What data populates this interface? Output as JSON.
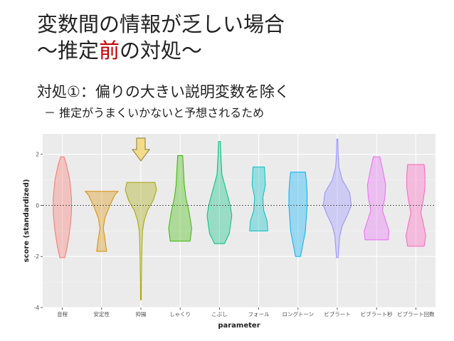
{
  "slide": {
    "title_line1": "変数間の情報が乏しい場合",
    "title_line2_pre": "～推定",
    "title_line2_accent": "前",
    "title_line2_post": "の対処～",
    "bullet": "対処①：偏りの大きい説明変数を除く",
    "sub_bullet": "－ 推定がうまくいかないと予想されるため",
    "accent_color": "#c00000"
  },
  "chart_data": {
    "type": "violin",
    "xlabel": "parameter",
    "ylabel": "score (standardized)",
    "ylim": [
      -4,
      2.8
    ],
    "yticks": [
      2,
      0,
      -2,
      -4
    ],
    "reference_line": 0,
    "grid": true,
    "highlight": {
      "category": "抑揚",
      "marker": "down-arrow",
      "color": "#f2dc8a"
    },
    "categories": [
      "音程",
      "安定性",
      "抑揚",
      "しゃくり",
      "こぶし",
      "フォール",
      "ロングトーン",
      "ビブラート",
      "ビブラート秒",
      "ビブラート回数"
    ],
    "series": [
      {
        "color": "#f8766d",
        "profile": [
          [
            -2.05,
            0.15
          ],
          [
            -1.6,
            0.3
          ],
          [
            -1.0,
            0.45
          ],
          [
            -0.3,
            0.55
          ],
          [
            0.3,
            0.55
          ],
          [
            1.0,
            0.45
          ],
          [
            1.6,
            0.25
          ],
          [
            1.9,
            0.1
          ]
        ]
      },
      {
        "color": "#d89000",
        "profile": [
          [
            -1.8,
            0.3
          ],
          [
            -1.3,
            0.2
          ],
          [
            -0.9,
            0.1
          ],
          [
            -0.5,
            0.2
          ],
          [
            0.0,
            0.5
          ],
          [
            0.4,
            0.8
          ],
          [
            0.55,
            1.0
          ]
        ]
      },
      {
        "color": "#a3a500",
        "profile": [
          [
            -3.7,
            0.02
          ],
          [
            -3.0,
            0.03
          ],
          [
            -2.0,
            0.05
          ],
          [
            -1.5,
            0.07
          ],
          [
            -1.0,
            0.1
          ],
          [
            -0.6,
            0.2
          ],
          [
            -0.2,
            0.4
          ],
          [
            0.2,
            0.75
          ],
          [
            0.6,
            0.95
          ],
          [
            0.9,
            0.85
          ]
        ]
      },
      {
        "color": "#39b600",
        "profile": [
          [
            -1.4,
            0.6
          ],
          [
            -0.9,
            0.7
          ],
          [
            -0.3,
            0.55
          ],
          [
            0.3,
            0.35
          ],
          [
            0.8,
            0.25
          ],
          [
            1.4,
            0.2
          ],
          [
            1.95,
            0.15
          ]
        ]
      },
      {
        "color": "#00bf7d",
        "profile": [
          [
            -1.5,
            0.3
          ],
          [
            -1.1,
            0.6
          ],
          [
            -0.4,
            0.75
          ],
          [
            0.0,
            0.65
          ],
          [
            0.6,
            0.4
          ],
          [
            1.2,
            0.15
          ],
          [
            1.8,
            0.1
          ],
          [
            2.5,
            0.05
          ]
        ]
      },
      {
        "color": "#00bfc4",
        "profile": [
          [
            -1.0,
            0.55
          ],
          [
            -0.6,
            0.5
          ],
          [
            -0.2,
            0.3
          ],
          [
            0.3,
            0.25
          ],
          [
            0.8,
            0.4
          ],
          [
            1.5,
            0.35
          ]
        ]
      },
      {
        "color": "#00b0f6",
        "profile": [
          [
            -2.0,
            0.15
          ],
          [
            -1.5,
            0.3
          ],
          [
            -1.0,
            0.45
          ],
          [
            -0.5,
            0.5
          ],
          [
            0.0,
            0.55
          ],
          [
            0.5,
            0.55
          ],
          [
            1.0,
            0.5
          ],
          [
            1.3,
            0.45
          ]
        ]
      },
      {
        "color": "#9590ff",
        "profile": [
          [
            -2.05,
            0.05
          ],
          [
            -1.6,
            0.1
          ],
          [
            -1.2,
            0.15
          ],
          [
            -0.8,
            0.3
          ],
          [
            -0.4,
            0.6
          ],
          [
            0.0,
            0.85
          ],
          [
            0.5,
            0.75
          ],
          [
            1.0,
            0.3
          ],
          [
            1.5,
            0.1
          ],
          [
            2.0,
            0.05
          ],
          [
            2.6,
            0.03
          ]
        ]
      },
      {
        "color": "#e76bf3",
        "profile": [
          [
            -1.35,
            0.7
          ],
          [
            -1.0,
            0.75
          ],
          [
            -0.6,
            0.55
          ],
          [
            -0.2,
            0.35
          ],
          [
            0.3,
            0.5
          ],
          [
            0.8,
            0.55
          ],
          [
            1.3,
            0.4
          ],
          [
            1.9,
            0.2
          ]
        ]
      },
      {
        "color": "#ff62bc",
        "profile": [
          [
            -1.6,
            0.5
          ],
          [
            -1.2,
            0.6
          ],
          [
            -0.7,
            0.45
          ],
          [
            -0.3,
            0.3
          ],
          [
            0.2,
            0.45
          ],
          [
            0.7,
            0.55
          ],
          [
            1.2,
            0.55
          ],
          [
            1.6,
            0.5
          ]
        ]
      }
    ]
  }
}
